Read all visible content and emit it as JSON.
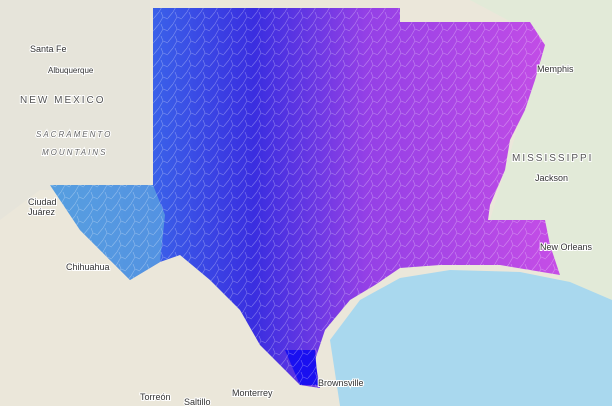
{
  "map": {
    "labels": [
      {
        "text": "Santa Fe"
      },
      {
        "text": "Albuquerque"
      },
      {
        "text": "NEW MEXICO"
      },
      {
        "text": "SACRAMENTO"
      },
      {
        "text": "MOUNTAINS"
      },
      {
        "text": "Ciudad"
      },
      {
        "text": "Juárez"
      },
      {
        "text": "Chihuahua"
      },
      {
        "text": "Memphis"
      },
      {
        "text": "MISSISSIPPI"
      },
      {
        "text": "Jackson"
      },
      {
        "text": "New Orleans"
      },
      {
        "text": "Brownsville"
      },
      {
        "text": "Monterrey"
      },
      {
        "text": "Torreón"
      },
      {
        "text": "Saltillo"
      }
    ]
  }
}
